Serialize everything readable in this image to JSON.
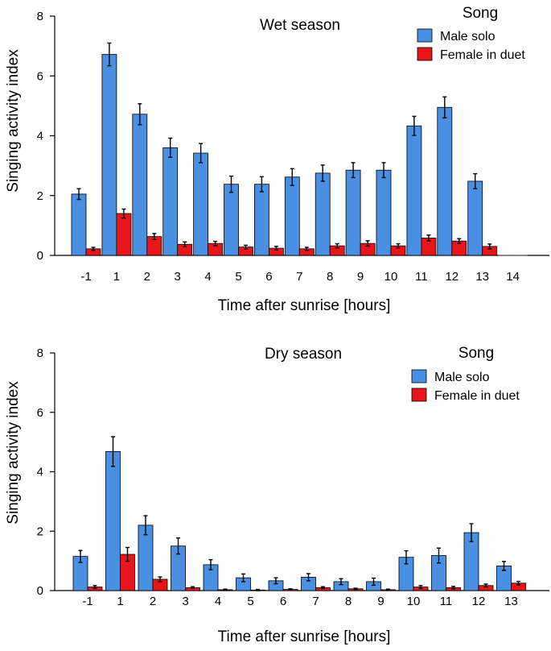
{
  "chart_data": [
    {
      "type": "bar",
      "title": "Wet season",
      "xlabel": "Time after sunrise [hours]",
      "ylabel": "Singing activity index",
      "ylim": [
        0,
        8
      ],
      "yticks": [
        "0",
        "2",
        "4",
        "6",
        "8"
      ],
      "categories": [
        "-1",
        "1",
        "2",
        "3",
        "4",
        "5",
        "6",
        "7",
        "8",
        "9",
        "10",
        "11",
        "12",
        "13",
        "14"
      ],
      "legend_title": "Song",
      "legend_position": "top-right",
      "series": [
        {
          "name": "Male solo",
          "color": "#4a90e2",
          "values": [
            2.05,
            6.72,
            4.72,
            3.6,
            3.42,
            2.38,
            2.38,
            2.62,
            2.75,
            2.85,
            2.85,
            4.33,
            4.95,
            2.48,
            0
          ],
          "errors": [
            0.18,
            0.38,
            0.35,
            0.32,
            0.32,
            0.27,
            0.25,
            0.28,
            0.27,
            0.25,
            0.25,
            0.32,
            0.35,
            0.25,
            0
          ]
        },
        {
          "name": "Female in duet",
          "color": "#e8161b",
          "values": [
            0.22,
            1.4,
            0.63,
            0.37,
            0.4,
            0.28,
            0.24,
            0.22,
            0.32,
            0.4,
            0.32,
            0.58,
            0.48,
            0.3,
            0
          ],
          "errors": [
            0.05,
            0.15,
            0.1,
            0.08,
            0.07,
            0.06,
            0.06,
            0.05,
            0.07,
            0.09,
            0.07,
            0.1,
            0.08,
            0.08,
            0
          ]
        }
      ]
    },
    {
      "type": "bar",
      "title": "Dry season",
      "xlabel": "Time after sunrise [hours]",
      "ylabel": "Singing activity index",
      "ylim": [
        0,
        8
      ],
      "yticks": [
        "0",
        "2",
        "4",
        "6",
        "8"
      ],
      "categories": [
        "-1",
        "1",
        "2",
        "3",
        "4",
        "5",
        "6",
        "7",
        "8",
        "9",
        "10",
        "11",
        "12",
        "13"
      ],
      "legend_title": "Song",
      "legend_position": "top-right",
      "series": [
        {
          "name": "Male solo",
          "color": "#4a90e2",
          "values": [
            1.15,
            4.68,
            2.2,
            1.5,
            0.87,
            0.43,
            0.33,
            0.45,
            0.3,
            0.3,
            1.12,
            1.18,
            1.95,
            0.83
          ],
          "errors": [
            0.2,
            0.5,
            0.32,
            0.27,
            0.17,
            0.13,
            0.1,
            0.12,
            0.1,
            0.12,
            0.22,
            0.25,
            0.3,
            0.15
          ]
        },
        {
          "name": "Female in duet",
          "color": "#e8161b",
          "values": [
            0.12,
            1.22,
            0.38,
            0.1,
            0.03,
            0.02,
            0.04,
            0.1,
            0.06,
            0.03,
            0.12,
            0.1,
            0.17,
            0.25
          ],
          "errors": [
            0.05,
            0.23,
            0.08,
            0.03,
            0.02,
            0.02,
            0.02,
            0.03,
            0.02,
            0.02,
            0.05,
            0.04,
            0.05,
            0.06
          ]
        }
      ]
    }
  ]
}
